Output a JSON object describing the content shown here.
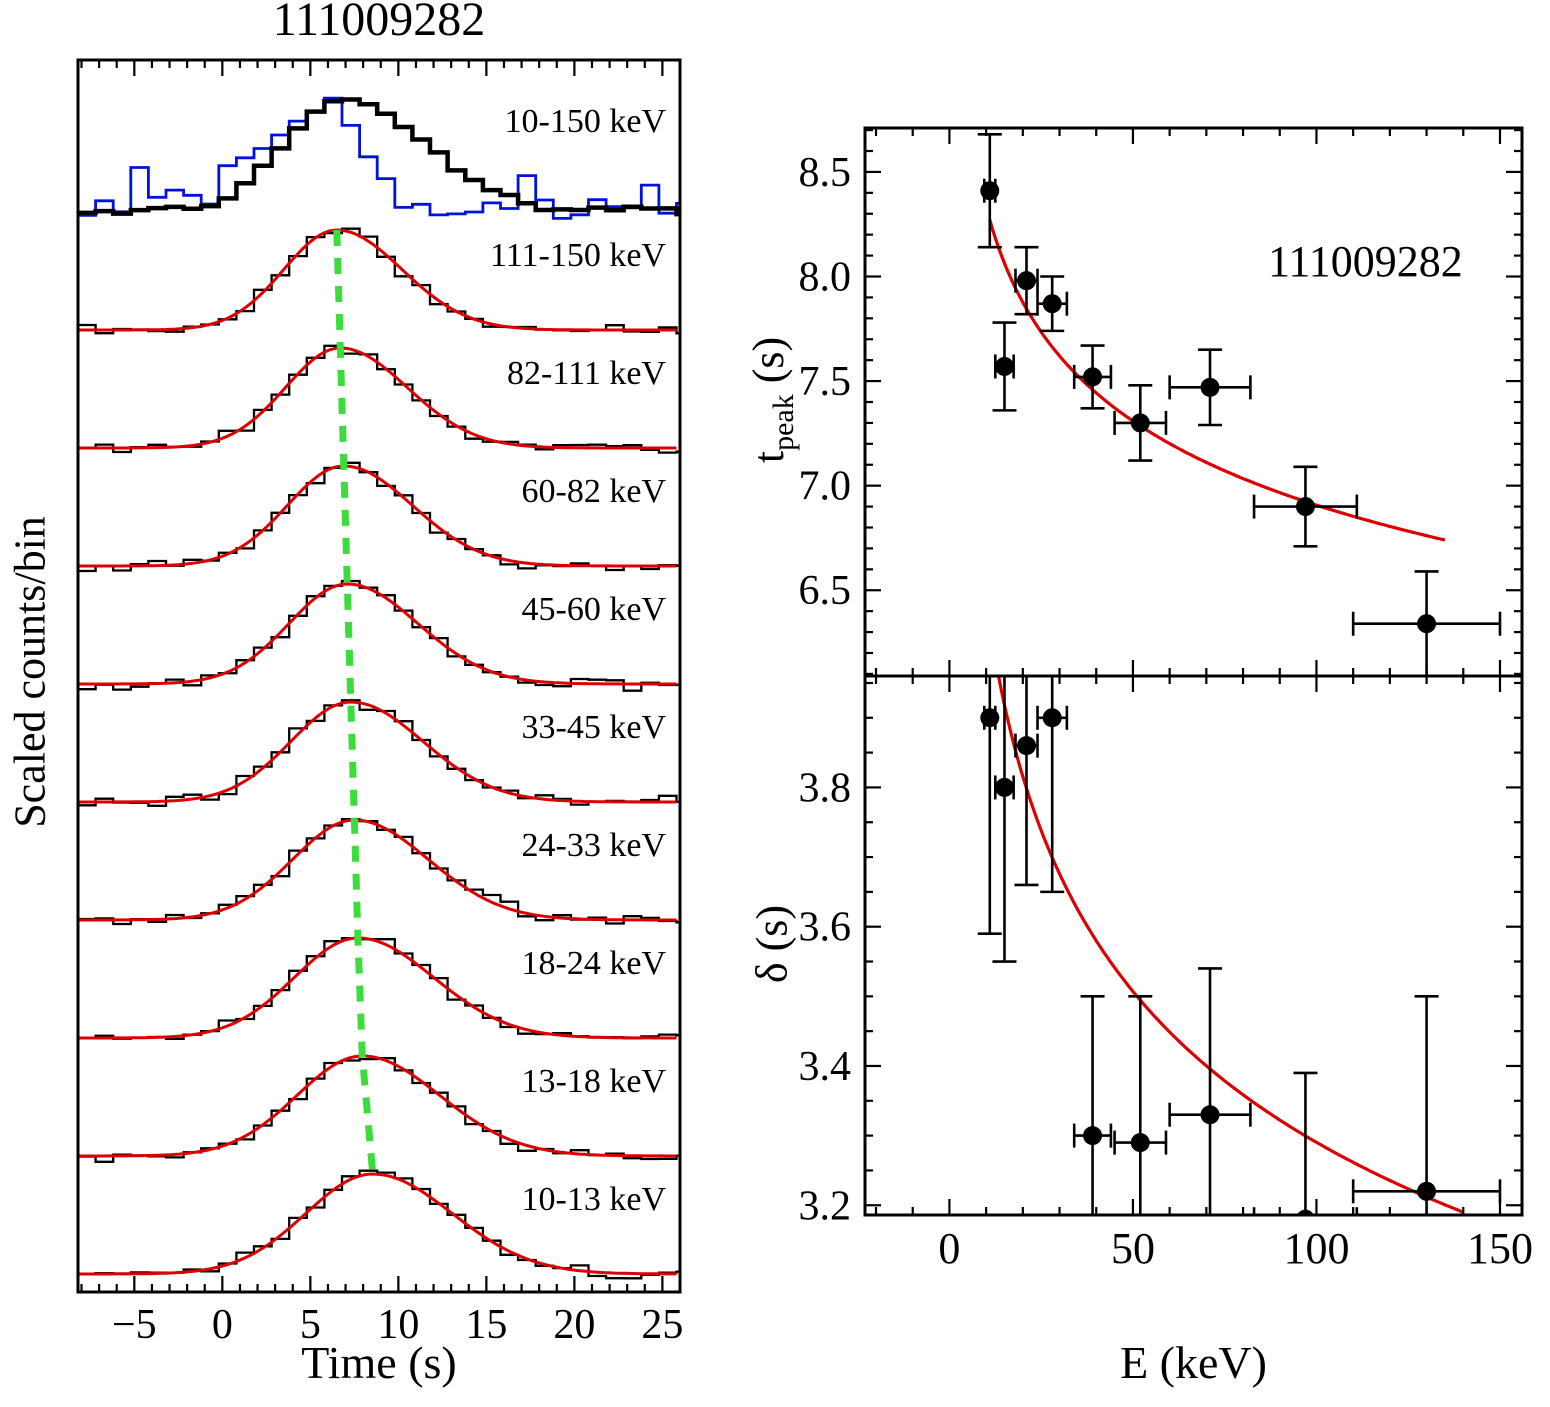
{
  "labels": {
    "tpeak_main": "t",
    "tpeak_sub": "peak",
    "tpeak_unit": " (s)"
  },
  "colors": {
    "histogram": "#000000",
    "overlay": "#0011dd",
    "fit": "#dd0000",
    "peak_track": "#3ddc3d",
    "marker": "#000000"
  },
  "chart_data": [
    {
      "id": "lightcurves",
      "type": "line",
      "title": "111009282",
      "xlabel": "Time (s)",
      "ylabel": "Scaled counts/bin",
      "xlim": [
        -8.2,
        26
      ],
      "xticks": [
        -5,
        0,
        5,
        10,
        15,
        20,
        25
      ],
      "x_minor_step": 1,
      "bin_width": 1.0,
      "bands": [
        {
          "label": "10-150 keV",
          "peak_time": 6.9,
          "rise": 3.4,
          "fall": 4.6,
          "amp": 1.12,
          "style": "total"
        },
        {
          "label": "111-150 keV",
          "peak_time": 6.5,
          "rise": 3.0,
          "fall": 3.7,
          "amp": 1.0
        },
        {
          "label": "82-111 keV",
          "peak_time": 6.7,
          "rise": 3.1,
          "fall": 3.8,
          "amp": 1.0
        },
        {
          "label": "60-82 keV",
          "peak_time": 6.9,
          "rise": 3.2,
          "fall": 3.9,
          "amp": 1.0
        },
        {
          "label": "45-60 keV",
          "peak_time": 7.1,
          "rise": 3.3,
          "fall": 4.0,
          "amp": 1.0
        },
        {
          "label": "33-45 keV",
          "peak_time": 7.3,
          "rise": 3.4,
          "fall": 4.1,
          "amp": 1.0
        },
        {
          "label": "24-33 keV",
          "peak_time": 7.5,
          "rise": 3.5,
          "fall": 4.2,
          "amp": 1.0
        },
        {
          "label": "18-24 keV",
          "peak_time": 7.7,
          "rise": 3.6,
          "fall": 4.3,
          "amp": 1.0
        },
        {
          "label": "13-18 keV",
          "peak_time": 7.95,
          "rise": 3.7,
          "fall": 4.4,
          "amp": 1.0
        },
        {
          "label": "10-13 keV",
          "peak_time": 8.55,
          "rise": 3.8,
          "fall": 4.5,
          "amp": 1.0
        }
      ],
      "overlay_histogram": {
        "peak_time": 6.0,
        "rise": 3.4,
        "fall": 2.0,
        "amp": 1.05,
        "bumps": [
          {
            "t": -6.7,
            "v": 0.14
          },
          {
            "t": -4.7,
            "v": 0.38
          },
          {
            "t": -3.7,
            "v": 0.15
          },
          {
            "t": 0.3,
            "v": 0.18
          },
          {
            "t": 1.3,
            "v": 0.22
          },
          {
            "t": 2.3,
            "v": 0.12
          },
          {
            "t": 17.3,
            "v": 0.32
          },
          {
            "t": 18.3,
            "v": 0.12
          },
          {
            "t": 21.3,
            "v": 0.1
          },
          {
            "t": 24.3,
            "v": 0.28
          }
        ]
      }
    },
    {
      "id": "tpeak-vs-energy",
      "type": "scatter",
      "annotation": "111009282",
      "ylabel": "t_peak (s)",
      "xlim": [
        -23,
        156
      ],
      "ylim": [
        6.09,
        8.71
      ],
      "xticks": [
        0,
        50,
        100,
        150
      ],
      "yticks": [
        6.5,
        7.0,
        7.5,
        8.0,
        8.5
      ],
      "x_minor_step": 10,
      "y_minor_step": 0.1,
      "points": [
        {
          "x": 11,
          "y": 8.41,
          "xerr": 1.5,
          "yerr": 0.27
        },
        {
          "x": 15,
          "y": 7.57,
          "xerr": 2.5,
          "yerr": 0.21
        },
        {
          "x": 21,
          "y": 7.98,
          "xerr": 3,
          "yerr": 0.16
        },
        {
          "x": 28,
          "y": 7.87,
          "xerr": 4,
          "yerr": 0.13
        },
        {
          "x": 39,
          "y": 7.52,
          "xerr": 5,
          "yerr": 0.15
        },
        {
          "x": 52,
          "y": 7.3,
          "xerr": 7,
          "yerr": 0.18
        },
        {
          "x": 71,
          "y": 7.47,
          "xerr": 11,
          "yerr": 0.18
        },
        {
          "x": 97,
          "y": 6.9,
          "xerr": 14,
          "yerr": 0.19
        },
        {
          "x": 130,
          "y": 6.34,
          "xerr": 20,
          "yerr": 0.25
        }
      ],
      "fit": {
        "form": "power-law",
        "anchors": [
          [
            11,
            8.27
          ],
          [
            135,
            6.74
          ]
        ]
      }
    },
    {
      "id": "delta-vs-energy",
      "type": "scatter",
      "xlabel": "E (keV)",
      "ylabel": "δ (s)",
      "xlim": [
        -23,
        156
      ],
      "ylim": [
        3.186,
        3.96
      ],
      "xticks": [
        0,
        50,
        100,
        150
      ],
      "yticks": [
        3.2,
        3.4,
        3.6,
        3.8
      ],
      "x_minor_step": 10,
      "y_minor_step": 0.05,
      "points": [
        {
          "x": 11,
          "y": 3.9,
          "xerr": 1.5,
          "yerr": 0.31
        },
        {
          "x": 15,
          "y": 3.8,
          "xerr": 2.5,
          "yerr": 0.25
        },
        {
          "x": 21,
          "y": 3.86,
          "xerr": 3,
          "yerr": 0.2
        },
        {
          "x": 28,
          "y": 3.9,
          "xerr": 4,
          "yerr": 0.25
        },
        {
          "x": 39,
          "y": 3.3,
          "xerr": 5,
          "yerr": 0.2
        },
        {
          "x": 52,
          "y": 3.29,
          "xerr": 7,
          "yerr": 0.21
        },
        {
          "x": 71,
          "y": 3.33,
          "xerr": 11,
          "yerr": 0.21
        },
        {
          "x": 97,
          "y": 3.18,
          "xerr": 14,
          "yerr": 0.21
        },
        {
          "x": 130,
          "y": 3.22,
          "xerr": 20,
          "yerr": 0.28
        }
      ],
      "fit": {
        "form": "power-law",
        "anchors": [
          [
            13,
            3.97
          ],
          [
            140,
            3.19
          ]
        ]
      }
    }
  ]
}
